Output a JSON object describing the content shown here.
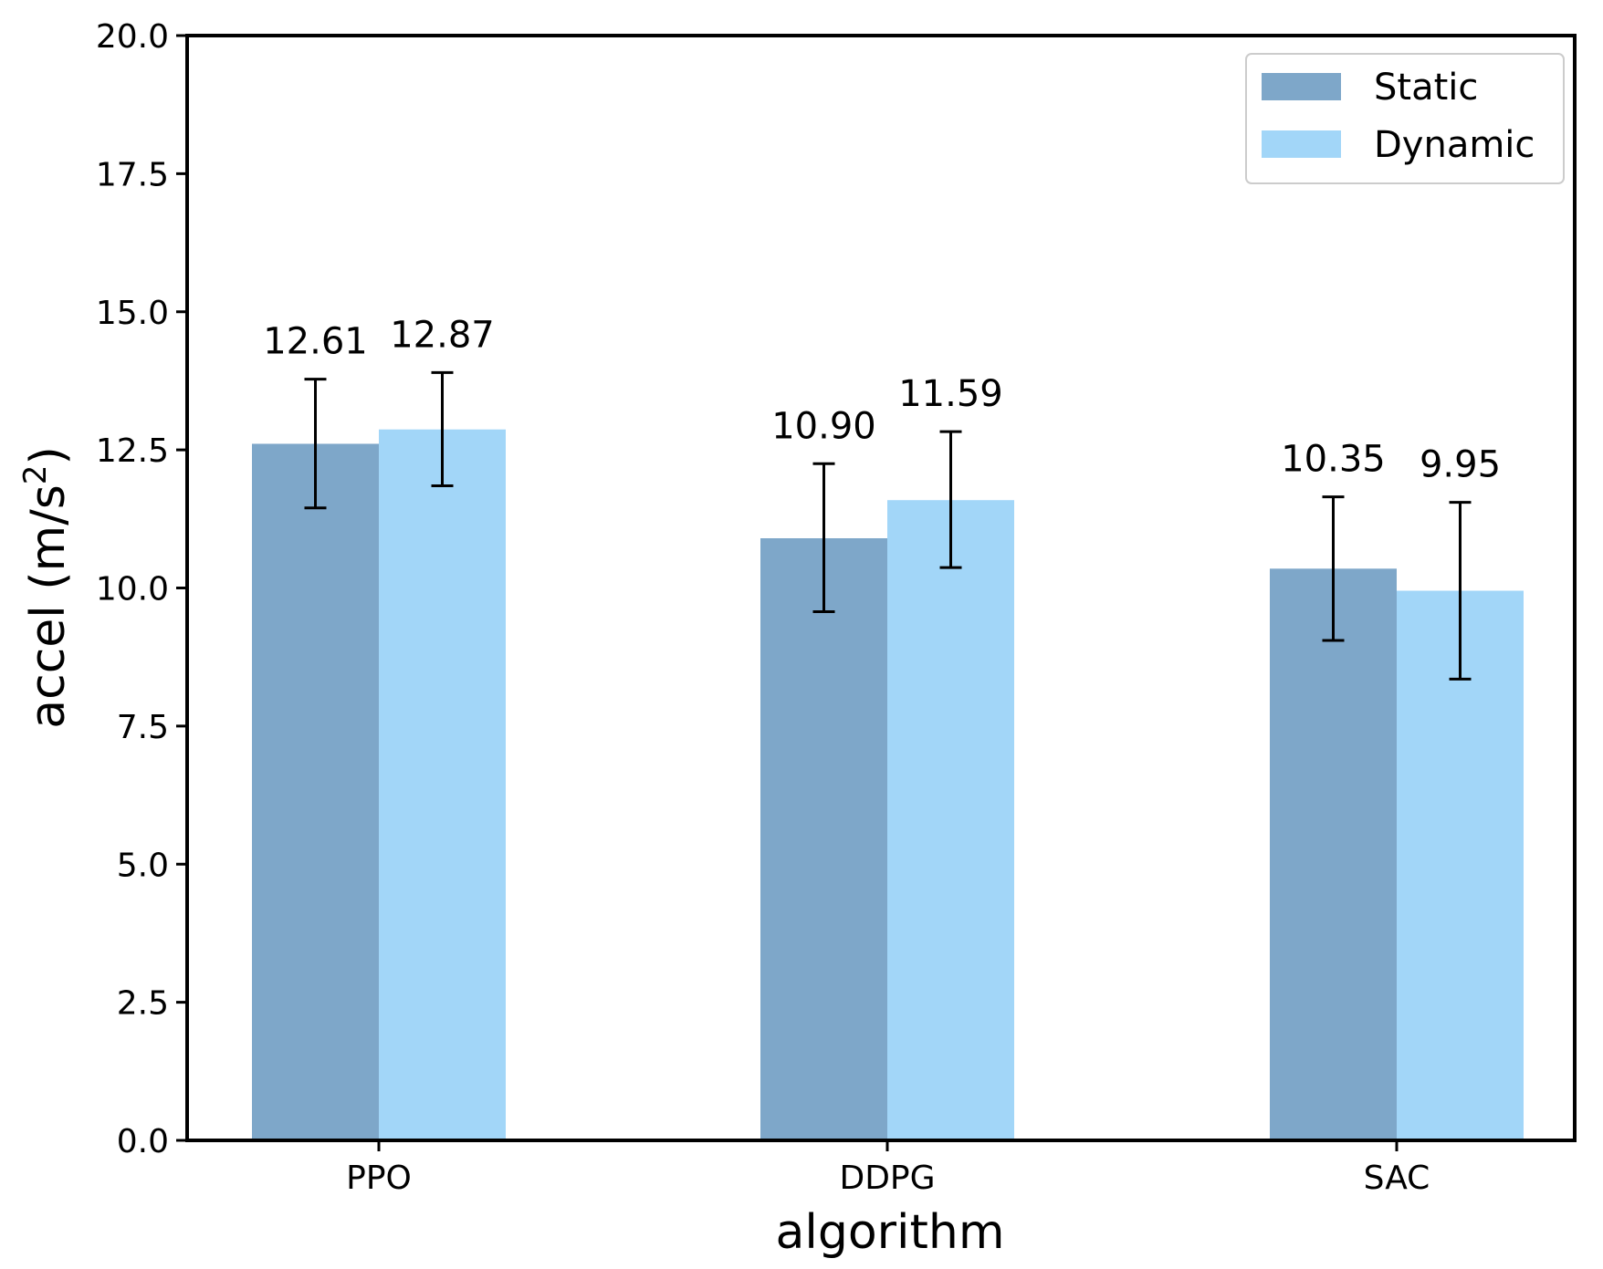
{
  "chart_data": {
    "type": "bar",
    "title": "",
    "xlabel": "algorithm",
    "ylabel_prefix": "accel (m/s",
    "ylabel_sup": "2",
    "ylabel_suffix": ")",
    "categories": [
      "PPO",
      "DDPG",
      "SAC"
    ],
    "ylim": [
      0,
      20
    ],
    "yticks": [
      0,
      2.5,
      5,
      7.5,
      10,
      12.5,
      15,
      17.5,
      20
    ],
    "ytick_labels": [
      "0.0",
      "2.5",
      "5.0",
      "7.5",
      "10.0",
      "12.5",
      "15.0",
      "17.5",
      "20.0"
    ],
    "grid": false,
    "legend_position": "top-right",
    "series": [
      {
        "name": "Static",
        "color": "#7ea7c9",
        "values": [
          12.61,
          10.9,
          10.35
        ],
        "value_labels": [
          "12.61",
          "10.90",
          "10.35"
        ],
        "err_low": [
          11.45,
          9.57,
          9.05
        ],
        "err_high": [
          13.78,
          12.25,
          11.65
        ]
      },
      {
        "name": "Dynamic",
        "color": "#a2d6f8",
        "values": [
          12.87,
          11.59,
          9.95
        ],
        "value_labels": [
          "12.87",
          "11.59",
          "9.95"
        ],
        "err_low": [
          11.85,
          10.37,
          8.35
        ],
        "err_high": [
          13.9,
          12.83,
          11.55
        ]
      }
    ]
  }
}
